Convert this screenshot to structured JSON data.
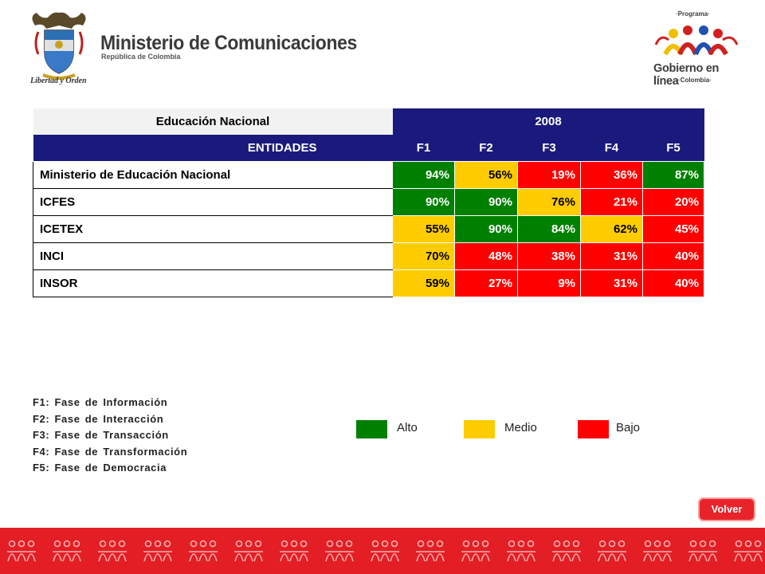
{
  "header": {
    "ministry_title": "Ministerio de Comunicaciones",
    "ministry_subtitle": "República de Colombia",
    "motto": "Libertad y Orden",
    "program_top": "·Programa·",
    "program_name": "Gobierno en línea",
    "program_bottom": "·Colombia·"
  },
  "table": {
    "entity_header": "Educación Nacional",
    "year_header": "2008",
    "columns": [
      "ENTIDADES",
      "F1",
      "F2",
      "F3",
      "F4",
      "F5"
    ],
    "rows": [
      {
        "name": "Ministerio de Educación Nacional",
        "values": [
          "94%",
          "56%",
          "19%",
          "36%",
          "87%"
        ],
        "levels": [
          "alto",
          "medio",
          "bajo",
          "bajo",
          "alto"
        ]
      },
      {
        "name": "ICFES",
        "values": [
          "90%",
          "90%",
          "76%",
          "21%",
          "20%"
        ],
        "levels": [
          "alto",
          "alto",
          "medio",
          "bajo",
          "bajo"
        ]
      },
      {
        "name": "ICETEX",
        "values": [
          "55%",
          "90%",
          "84%",
          "62%",
          "45%"
        ],
        "levels": [
          "medio",
          "alto",
          "alto",
          "medio",
          "bajo"
        ]
      },
      {
        "name": "INCI",
        "values": [
          "70%",
          "48%",
          "38%",
          "31%",
          "40%"
        ],
        "levels": [
          "medio",
          "bajo",
          "bajo",
          "bajo",
          "bajo"
        ]
      },
      {
        "name": "INSOR",
        "values": [
          "59%",
          "27%",
          "9%",
          "31%",
          "40%"
        ],
        "levels": [
          "medio",
          "bajo",
          "bajo",
          "bajo",
          "bajo"
        ]
      }
    ]
  },
  "phases": [
    "F1: Fase de Información",
    "F2: Fase de Interacción",
    "F3: Fase de Transacción",
    "F4: Fase de Transformación",
    "F5: Fase de Democracia"
  ],
  "legend": {
    "alto": {
      "label": "Alto",
      "color": "#008000"
    },
    "medio": {
      "label": "Medio",
      "color": "#ffcc00"
    },
    "bajo": {
      "label": "Bajo",
      "color": "#ff0000"
    }
  },
  "colors": {
    "header_navy": "#1a1a7c",
    "footer_red": "#e31e24"
  },
  "volver_label": "Volver"
}
